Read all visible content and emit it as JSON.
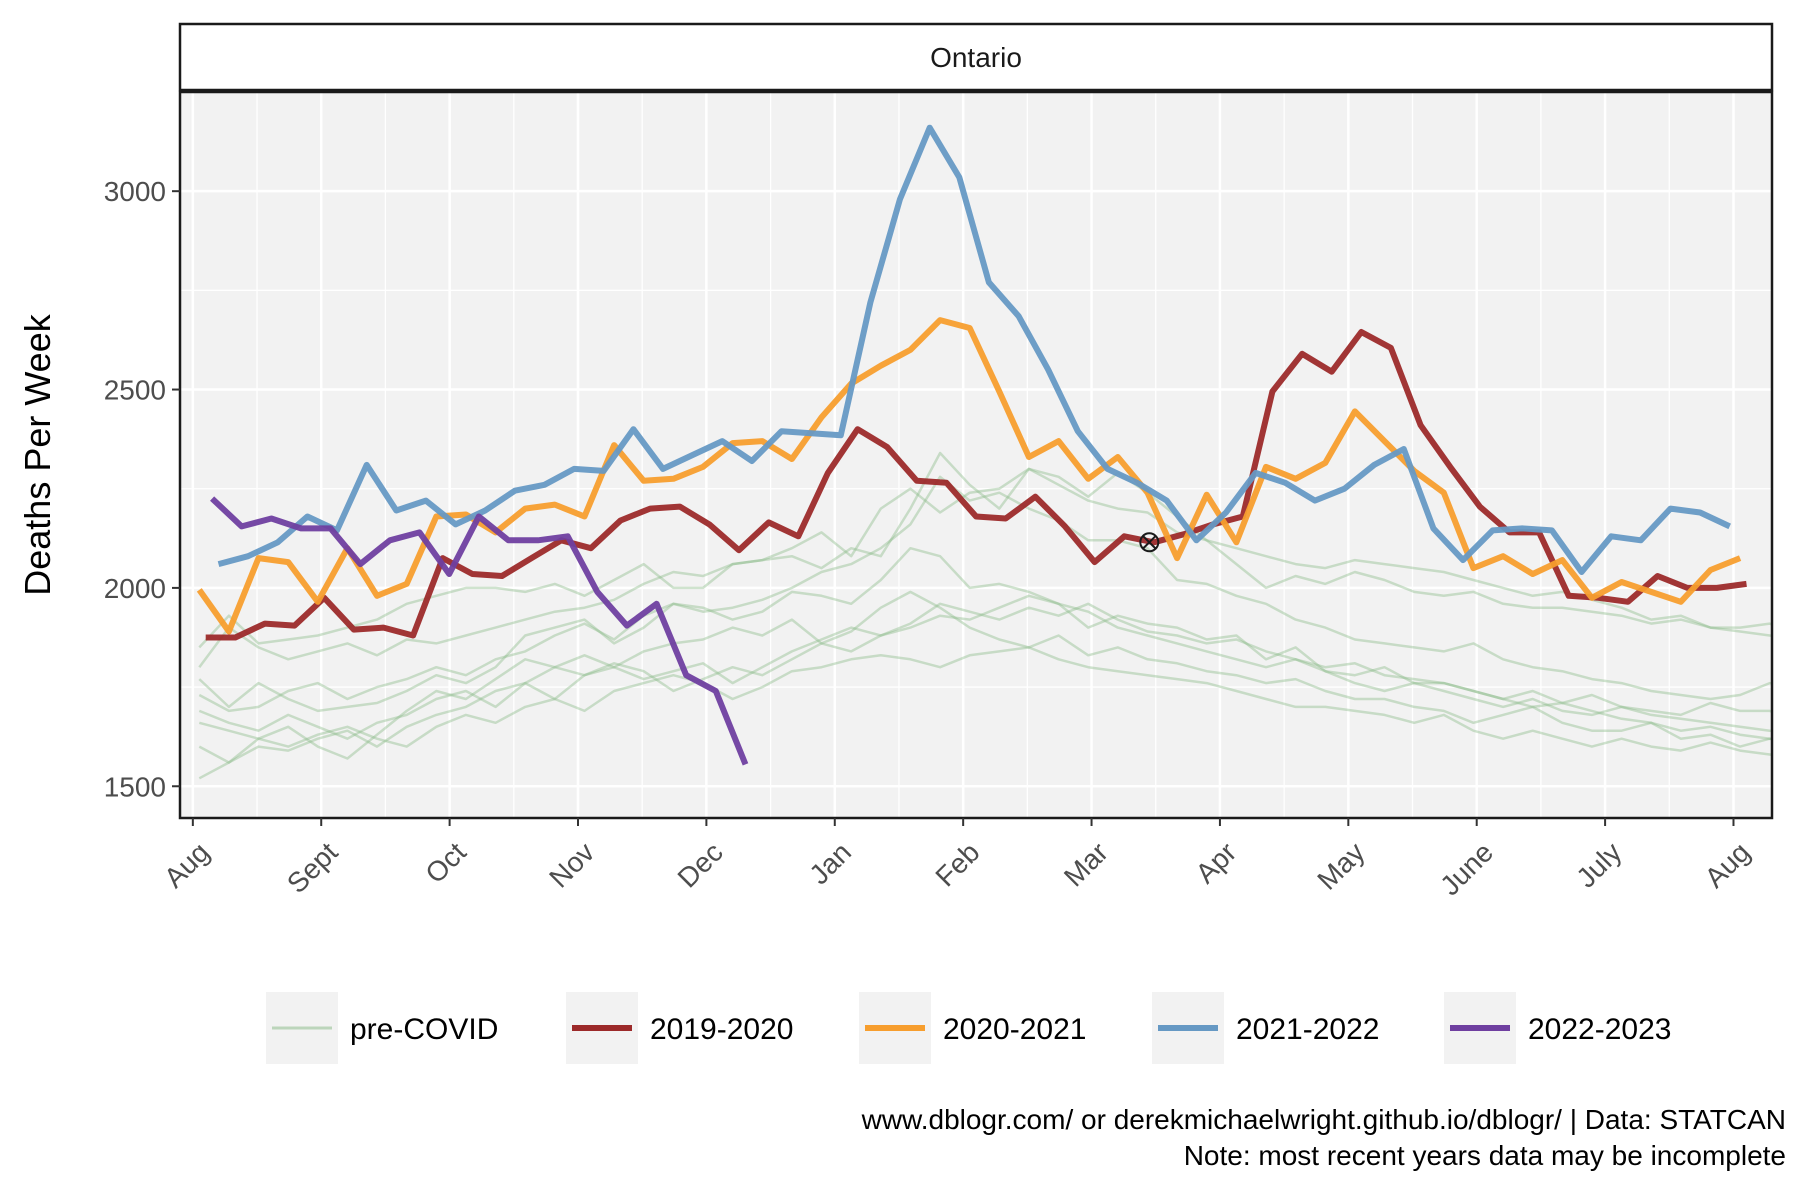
{
  "chart_data": {
    "type": "line",
    "facet": "Ontario",
    "ylabel": "Deaths Per Week",
    "xlabel": "",
    "ylim": [
      1420,
      3250
    ],
    "xlim": [
      -0.1,
      12.3
    ],
    "y_ticks": [
      1500,
      2000,
      2500,
      3000
    ],
    "x_ticks": [
      0,
      1,
      2,
      3,
      4,
      5,
      6,
      7,
      8,
      9,
      10,
      11,
      12
    ],
    "x_tick_labels": [
      "Aug",
      "Sept",
      "Oct",
      "Nov",
      "Dec",
      "Jan",
      "Feb",
      "Mar",
      "Apr",
      "May",
      "June",
      "July",
      "Aug"
    ],
    "grid": true,
    "legend_position": "bottom",
    "caption": [
      "www.dblogr.com/ or derekmichaelwright.github.io/dblogr/ | Data: STATCAN",
      "Note: most recent years data may be incomplete"
    ],
    "legend": [
      {
        "label": "pre-COVID",
        "color": "#86b884",
        "opacity": 0.5,
        "width": 3
      },
      {
        "label": "2019-2020",
        "color": "#9c2a2a",
        "opacity": 1,
        "width": 6
      },
      {
        "label": "2020-2021",
        "color": "#f79e2e",
        "opacity": 1,
        "width": 6
      },
      {
        "label": "2021-2022",
        "color": "#6699c4",
        "opacity": 1,
        "width": 6
      },
      {
        "label": "2022-2023",
        "color": "#6f3fa0",
        "opacity": 1,
        "width": 6
      }
    ],
    "marker": {
      "x": 7.45,
      "y": 2115,
      "symbol": "circled-x"
    },
    "series": [
      {
        "name": "pre-COVID",
        "color": "#86b884",
        "width": 2.5,
        "opacity": 0.4,
        "x_start": 0.05,
        "x_step": 0.2308,
        "values": [
          1850,
          1930,
          1860,
          1870,
          1880,
          1900,
          1920,
          1960,
          1980,
          2000,
          2000,
          1990,
          2010,
          1980,
          2020,
          2060,
          2000,
          2000,
          2060,
          2070,
          2080,
          2050,
          2100,
          2080,
          2200,
          2340,
          2260,
          2200,
          2300,
          2280,
          2230,
          2290,
          2240,
          2180,
          2120,
          2100,
          2080,
          2060,
          2050,
          2070,
          2060,
          2050,
          2040,
          2020,
          2000,
          1980,
          1990,
          1970,
          1950,
          1920,
          1930,
          1900,
          1900,
          1910,
          1880,
          1860
        ]
      },
      {
        "name": "pre-COVID",
        "color": "#86b884",
        "width": 2.5,
        "opacity": 0.4,
        "x_start": 0.05,
        "x_step": 0.2308,
        "values": [
          1800,
          1900,
          1850,
          1820,
          1840,
          1860,
          1830,
          1870,
          1860,
          1880,
          1900,
          1920,
          1940,
          1950,
          1970,
          2010,
          2040,
          2030,
          2060,
          2070,
          2100,
          2140,
          2080,
          2200,
          2250,
          2190,
          2240,
          2250,
          2300,
          2260,
          2220,
          2200,
          2190,
          2140,
          2120,
          2060,
          2000,
          2030,
          2010,
          2040,
          2020,
          1990,
          1980,
          1990,
          1960,
          1950,
          1950,
          1940,
          1930,
          1910,
          1920,
          1900,
          1890,
          1880,
          1870,
          1860
        ]
      },
      {
        "name": "pre-COVID",
        "color": "#86b884",
        "width": 2.5,
        "opacity": 0.4,
        "x_start": 0.05,
        "x_step": 0.2308,
        "values": [
          1770,
          1700,
          1760,
          1720,
          1690,
          1700,
          1710,
          1740,
          1780,
          1760,
          1800,
          1880,
          1900,
          1920,
          1860,
          1900,
          1960,
          1940,
          1950,
          1970,
          2000,
          2040,
          2060,
          2100,
          2160,
          2280,
          2220,
          2240,
          2200,
          2170,
          2120,
          2120,
          2100,
          2020,
          2010,
          1980,
          1960,
          1920,
          1900,
          1870,
          1860,
          1850,
          1840,
          1860,
          1820,
          1800,
          1790,
          1770,
          1760,
          1740,
          1730,
          1720,
          1730,
          1760,
          1750,
          1740
        ]
      },
      {
        "name": "pre-COVID",
        "color": "#86b884",
        "width": 2.5,
        "opacity": 0.4,
        "x_start": 0.05,
        "x_step": 0.2308,
        "values": [
          1730,
          1690,
          1700,
          1740,
          1760,
          1720,
          1750,
          1770,
          1800,
          1780,
          1820,
          1840,
          1880,
          1910,
          1870,
          1930,
          1960,
          1950,
          1920,
          1940,
          1990,
          1980,
          1960,
          2020,
          2100,
          2080,
          2000,
          2010,
          1990,
          1960,
          1900,
          1930,
          1910,
          1900,
          1870,
          1880,
          1820,
          1850,
          1790,
          1780,
          1800,
          1760,
          1760,
          1740,
          1720,
          1740,
          1710,
          1730,
          1700,
          1690,
          1680,
          1710,
          1690,
          1690,
          1660,
          1640
        ]
      },
      {
        "name": "pre-COVID",
        "color": "#86b884",
        "width": 2.5,
        "opacity": 0.4,
        "x_start": 0.05,
        "x_step": 0.2308,
        "values": [
          1690,
          1660,
          1640,
          1680,
          1650,
          1620,
          1660,
          1680,
          1720,
          1740,
          1700,
          1760,
          1800,
          1830,
          1800,
          1840,
          1860,
          1870,
          1900,
          1880,
          1920,
          1860,
          1890,
          1950,
          1990,
          1950,
          1900,
          1870,
          1850,
          1880,
          1830,
          1850,
          1820,
          1810,
          1790,
          1780,
          1760,
          1770,
          1740,
          1720,
          1720,
          1700,
          1690,
          1660,
          1680,
          1700,
          1660,
          1640,
          1640,
          1660,
          1620,
          1630,
          1600,
          1620,
          1610,
          1600
        ]
      },
      {
        "name": "pre-COVID",
        "color": "#86b884",
        "width": 2.5,
        "opacity": 0.4,
        "x_start": 0.05,
        "x_step": 0.2308,
        "values": [
          1660,
          1640,
          1620,
          1600,
          1630,
          1650,
          1620,
          1600,
          1650,
          1680,
          1660,
          1700,
          1720,
          1690,
          1740,
          1760,
          1780,
          1760,
          1720,
          1750,
          1790,
          1800,
          1820,
          1830,
          1820,
          1800,
          1830,
          1840,
          1850,
          1820,
          1800,
          1790,
          1780,
          1770,
          1760,
          1740,
          1720,
          1700,
          1700,
          1690,
          1680,
          1660,
          1680,
          1640,
          1620,
          1640,
          1620,
          1600,
          1620,
          1600,
          1590,
          1610,
          1590,
          1580,
          1570,
          1550
        ]
      },
      {
        "name": "pre-COVID",
        "color": "#86b884",
        "width": 2.5,
        "opacity": 0.4,
        "x_start": 0.05,
        "x_step": 0.2308,
        "values": [
          1600,
          1560,
          1620,
          1650,
          1600,
          1570,
          1630,
          1690,
          1740,
          1720,
          1770,
          1820,
          1800,
          1780,
          1810,
          1790,
          1740,
          1770,
          1800,
          1780,
          1820,
          1860,
          1840,
          1880,
          1900,
          1930,
          1920,
          1950,
          1980,
          1960,
          1940,
          1900,
          1880,
          1860,
          1840,
          1820,
          1800,
          1820,
          1790,
          1760,
          1740,
          1760,
          1740,
          1720,
          1700,
          1720,
          1690,
          1680,
          1700,
          1680,
          1670,
          1660,
          1650,
          1640,
          1630,
          1620
        ]
      },
      {
        "name": "pre-COVID",
        "color": "#86b884",
        "width": 2.5,
        "opacity": 0.4,
        "x_start": 0.05,
        "x_step": 0.2308,
        "values": [
          1520,
          1560,
          1600,
          1590,
          1620,
          1640,
          1600,
          1650,
          1680,
          1700,
          1740,
          1760,
          1720,
          1780,
          1800,
          1770,
          1790,
          1810,
          1760,
          1800,
          1840,
          1870,
          1900,
          1880,
          1910,
          1960,
          1940,
          1920,
          1950,
          1930,
          1960,
          1920,
          1890,
          1880,
          1860,
          1870,
          1840,
          1820,
          1800,
          1810,
          1780,
          1770,
          1760,
          1740,
          1720,
          1700,
          1710,
          1690,
          1670,
          1660,
          1640,
          1650,
          1630,
          1620,
          1610,
          1600
        ]
      },
      {
        "name": "2019-2020",
        "color": "#9c2a2a",
        "width": 6,
        "opacity": 0.95,
        "x_start": 0.1,
        "x_step": 0.2308,
        "values": [
          1875,
          1875,
          1910,
          1905,
          1975,
          1895,
          1900,
          1880,
          2075,
          2035,
          2030,
          2075,
          2120,
          2100,
          2170,
          2200,
          2205,
          2160,
          2095,
          2165,
          2130,
          2290,
          2400,
          2355,
          2270,
          2265,
          2180,
          2175,
          2230,
          2155,
          2065,
          2130,
          2115,
          2135,
          2160,
          2180,
          2495,
          2590,
          2545,
          2645,
          2605,
          2410,
          2305,
          2205,
          2140,
          2140,
          1980,
          1975,
          1965,
          2030,
          2000,
          2000,
          2010
        ]
      },
      {
        "name": "2020-2021",
        "color": "#f79e2e",
        "width": 6,
        "opacity": 0.95,
        "x_start": 0.05,
        "x_step": 0.2308,
        "values": [
          1995,
          1890,
          2075,
          2065,
          1965,
          2100,
          1980,
          2010,
          2180,
          2185,
          2140,
          2200,
          2210,
          2180,
          2360,
          2270,
          2275,
          2305,
          2365,
          2370,
          2325,
          2430,
          2515,
          2560,
          2600,
          2675,
          2655,
          2495,
          2330,
          2370,
          2275,
          2330,
          2240,
          2075,
          2235,
          2115,
          2305,
          2275,
          2315,
          2445,
          2370,
          2295,
          2240,
          2050,
          2080,
          2035,
          2070,
          1975,
          2015,
          1990,
          1965,
          2045,
          2075
        ]
      },
      {
        "name": "2021-2022",
        "color": "#6699c4",
        "width": 6,
        "opacity": 0.95,
        "x_start": 0.2,
        "x_step": 0.2308,
        "values": [
          2060,
          2080,
          2115,
          2180,
          2145,
          2310,
          2195,
          2220,
          2160,
          2195,
          2245,
          2260,
          2300,
          2295,
          2400,
          2300,
          2335,
          2370,
          2320,
          2395,
          2390,
          2385,
          2720,
          2980,
          3160,
          3035,
          2770,
          2685,
          2550,
          2395,
          2300,
          2265,
          2220,
          2120,
          2190,
          2290,
          2265,
          2220,
          2250,
          2310,
          2350,
          2150,
          2070,
          2145,
          2150,
          2145,
          2040,
          2130,
          2120,
          2200,
          2190,
          2155
        ]
      },
      {
        "name": "2022-2023",
        "color": "#6f3fa0",
        "width": 6,
        "opacity": 0.95,
        "x_start": 0.15,
        "x_step": 0.2308,
        "values": [
          2225,
          2155,
          2175,
          2150,
          2150,
          2060,
          2120,
          2140,
          2035,
          2180,
          2120,
          2120,
          2130,
          1990,
          1905,
          1960,
          1780,
          1740,
          1555
        ]
      }
    ]
  }
}
